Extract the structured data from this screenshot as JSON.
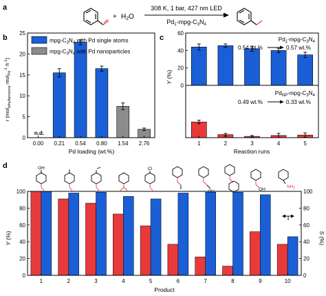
{
  "panel_labels": {
    "a": "a",
    "b": "b",
    "c": "c",
    "d": "d"
  },
  "reaction": {
    "plus": "+",
    "water": "H",
    "water_sub": "2",
    "water_tail": "O",
    "conditions": "308 K, 1 bar, 427 nm LED",
    "cat_pd": "Pd",
    "cat_sub": "1",
    "cat_mpg": "-mpg-C",
    "cat_n": "3",
    "cat_n2": "N",
    "cat_n4": "4"
  },
  "chart_data": [
    {
      "id": "b",
      "type": "bar",
      "xlabel": "Pd loading (wt.%)",
      "ylabel": "r (mol_ethylbenzene·mol_Pd^-1·h^-1)",
      "ylabel_parts": [
        "r (mol",
        "ethylbenzene",
        "·mol",
        "Pd",
        "-1",
        "·h",
        "-1",
        ")"
      ],
      "categories": [
        "0.00",
        "0.21",
        "0.54",
        "0.80",
        "1.54",
        "2.76"
      ],
      "values": [
        0,
        15.5,
        22.8,
        16.5,
        7.5,
        2.0
      ],
      "errors": [
        0,
        1.0,
        0.6,
        0.6,
        0.8,
        0.3
      ],
      "colors": [
        "#1a5fd6",
        "#1a5fd6",
        "#1a5fd6",
        "#1a5fd6",
        "#8c8c8c",
        "#8c8c8c"
      ],
      "annotation": "n.d.",
      "yticks": [
        0,
        5,
        10,
        15,
        20,
        25
      ],
      "ylim": [
        0,
        25
      ],
      "legend": [
        {
          "name": "mpg-C3N4 with Pd single atoms",
          "color": "#1a5fd6"
        },
        {
          "name": "mpg-C3N4 with Pd nanoparticles",
          "color": "#8c8c8c"
        }
      ],
      "legend_parts": [
        {
          "pre": "mpg-C",
          "s1": "3",
          "mid": "N",
          "s2": "4",
          "post": " with Pd single atoms"
        },
        {
          "pre": "mpg-C",
          "s1": "3",
          "mid": "N",
          "s2": "4",
          "post": " with Pd nanoparticles"
        }
      ]
    },
    {
      "id": "c-top",
      "type": "bar",
      "xlabel": "Reaction runs",
      "ylabel": "Y (%)",
      "categories": [
        "1",
        "2",
        "3",
        "4",
        "5"
      ],
      "values": [
        44,
        45.5,
        42,
        40,
        35
      ],
      "errors": [
        3.5,
        2,
        3,
        2.5,
        3
      ],
      "color": "#1a5fd6",
      "yticks": [
        0,
        20,
        40,
        60
      ],
      "ylim": [
        0,
        60
      ],
      "title_parts": {
        "pre": "Pd",
        "s0": "1",
        "a": "-mpg-C",
        "s1": "3",
        "b": "N",
        "s2": "4"
      },
      "note_left": "0.54 wt.%",
      "note_right": "0.57 wt.%"
    },
    {
      "id": "c-bottom",
      "type": "bar",
      "xlabel": "Reaction runs",
      "ylabel": "Y (%)",
      "categories": [
        "1",
        "2",
        "3",
        "4",
        "5"
      ],
      "values": [
        18,
        3.5,
        1.5,
        2.5,
        3
      ],
      "errors": [
        2,
        1.5,
        1,
        2.5,
        2.5
      ],
      "color": "#e83a3a",
      "ylim": [
        0,
        60
      ],
      "title_parts": {
        "pre": "Pd",
        "s0": "NP",
        "a": "-mpg-C",
        "s1": "3",
        "b": "N",
        "s2": "4"
      },
      "note_left": "0.49 wt.%",
      "note_right": "0.33 wt.%"
    },
    {
      "id": "d",
      "type": "bar",
      "xlabel": "Product",
      "ylabel": "Y (%)",
      "ylabel_right": "S (%)",
      "categories": [
        "1",
        "2",
        "3",
        "4",
        "5",
        "6",
        "7",
        "8",
        "9",
        "10"
      ],
      "series": [
        {
          "name": "Y",
          "color": "#e83a3a",
          "values": [
            100,
            91,
            86,
            73,
            59,
            37,
            22,
            11,
            52,
            37
          ]
        },
        {
          "name": "S",
          "color": "#1a5fd6",
          "values": [
            100,
            98,
            99,
            94,
            91,
            98,
            99,
            99,
            96,
            46
          ]
        }
      ],
      "yticks": [
        0,
        20,
        40,
        60,
        80,
        100
      ],
      "ylim": [
        0,
        100
      ],
      "structure_labels": {
        "oh_top": "OH",
        "oh_chain": "OH",
        "oh_benzyl": "OH",
        "cl": "Cl",
        "nh2": "NH",
        "nh2_sub": "2"
      }
    }
  ]
}
